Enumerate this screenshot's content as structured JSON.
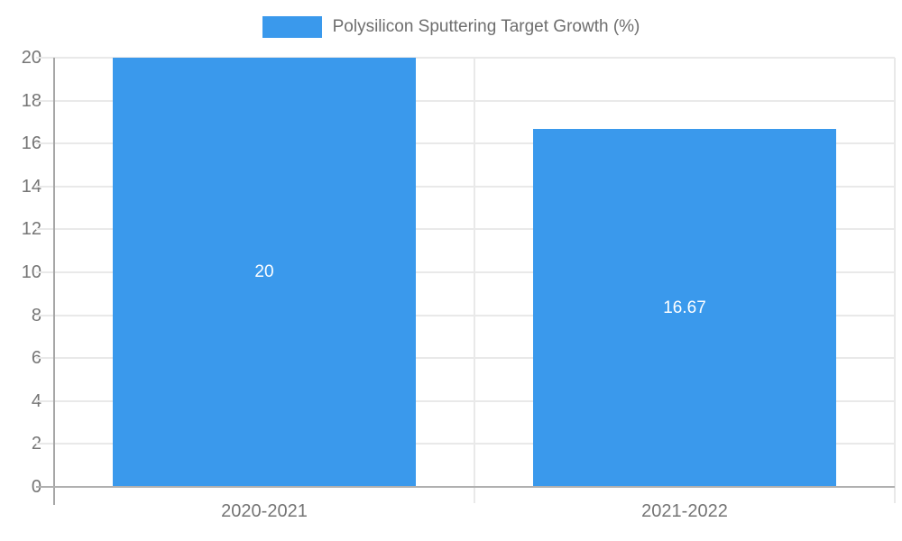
{
  "colors": {
    "bar": "#3a99ec",
    "gridline": "#e9e9e9",
    "axis_line": "#a6a6a6",
    "tick_label": "#757575",
    "legend_text": "#6e6e6e",
    "bar_label": "#ffffff",
    "background": "#ffffff"
  },
  "legend": {
    "label": "Polysilicon Sputtering Target Growth (%)"
  },
  "chart_data": {
    "type": "bar",
    "title": "Polysilicon Sputtering Target Growth (%)",
    "categories": [
      "2020-2021",
      "2021-2022"
    ],
    "values": [
      20,
      16.67
    ],
    "value_labels": [
      "20",
      "16.67"
    ],
    "xlabel": "",
    "ylabel": "",
    "ylim": [
      0,
      20
    ],
    "yticks": [
      0,
      2,
      4,
      6,
      8,
      10,
      12,
      14,
      16,
      18,
      20
    ],
    "grid": true,
    "legend_position": "top",
    "bar_color": "#3a99ec",
    "data_label_position": "center",
    "bar_width_ratio": 0.72
  }
}
